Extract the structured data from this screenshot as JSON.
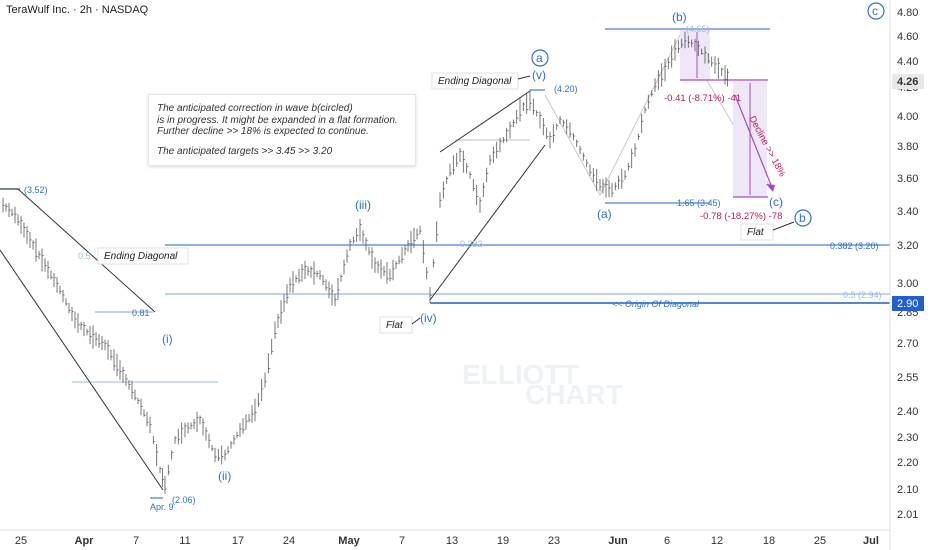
{
  "header": {
    "title": "TeraWulf Inc. · 2h · NASDAQ"
  },
  "note": {
    "line1": "The anticipated correction in wave b(circled)",
    "line2": " is in progress. It might be expanded in a flat formation.",
    "line3": " Further decline >> 18% is expected to continue.",
    "line4": "The anticipated targets >> 3.45 >>  3.20"
  },
  "chart_data": {
    "type": "candlestick",
    "title": "",
    "yticks": [
      "4.80",
      "4.60",
      "4.40",
      "4.20",
      "4.00",
      "3.80",
      "3.60",
      "3.40",
      "3.20",
      "3.00",
      "2.85",
      "2.70",
      "2.55",
      "2.40",
      "2.30",
      "2.20",
      "2.10",
      "2.01"
    ],
    "xticks": [
      "25",
      "Apr",
      "7",
      "11",
      "17",
      "24",
      "May",
      "7",
      "13",
      "19",
      "23",
      "Jun",
      "6",
      "12",
      "18",
      "25",
      "Jul"
    ],
    "current_price": "4.26",
    "origin_price": "2.90",
    "waves": {
      "i": "(i)",
      "ii": "(ii)",
      "iii": "(iii)",
      "iv": "(iv)",
      "v": "(v)",
      "a_circ": "a",
      "b_circ": "b",
      "c_circ": "c",
      "a": "(a)",
      "b": "(b)",
      "c": "(c)"
    },
    "price_labels": {
      "p352": "(3.52)",
      "p206": "(2.06)",
      "p420": "(4.20)",
      "p465": "(4.65)",
      "p345": "1.65 (3.45)",
      "f081": "0.81",
      "f382": "0.382 (3.20)",
      "f05": "0.5 (2.94)",
      "faint1": "0.5",
      "faint2": "0.382"
    },
    "date_label": "Apr. 9",
    "tags": {
      "ed1": "Ending Diagonal",
      "ed2": "Ending Diagonal",
      "flat1": "Flat",
      "flat2": "Flat",
      "origin": "<< Origin Of Diagonal",
      "decline": "Decline >> 18%"
    },
    "measures": {
      "m1": "-0.41 (-8.71%) -41",
      "m2": "-0.78 (-18.27%) -78"
    },
    "watermark": [
      "ELLIOTT",
      "CHART"
    ],
    "colors": {
      "blue": "#2f6fd6",
      "line": "#1f5fd1",
      "faint": "#9bbbe8",
      "magenta": "#c2185b",
      "box": "#ede7f6",
      "candle": "#555555"
    }
  }
}
